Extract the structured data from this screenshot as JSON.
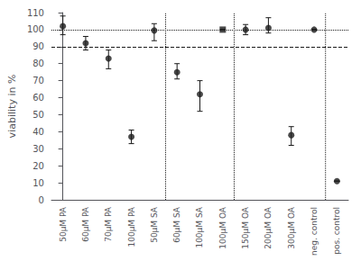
{
  "chart_data": {
    "type": "scatter",
    "categories": [
      "50μM PA",
      "60μM PA",
      "70μM PA",
      "100μM PA",
      "50μM SA",
      "60μM SA",
      "100μM SA",
      "100μM OA",
      "150μM OA",
      "200μM OA",
      "300μM OA",
      "neg. control",
      "pos. control"
    ],
    "values": [
      102,
      92,
      83,
      37,
      99.5,
      75,
      62,
      100,
      100,
      101,
      38,
      100,
      11
    ],
    "errors_upper": [
      6,
      4,
      5,
      4,
      4,
      5,
      8,
      0.1,
      3,
      6,
      5,
      0.1,
      0.1
    ],
    "errors_lower": [
      5,
      4,
      6,
      4,
      6,
      4,
      10,
      0.1,
      3,
      3,
      6,
      0.1,
      0.1
    ],
    "marker": [
      "circle",
      "circle",
      "circle",
      "circle",
      "circle",
      "circle",
      "circle",
      "square",
      "circle",
      "circle",
      "circle",
      "circle",
      "circle"
    ],
    "color": "#1a1a1a",
    "ylabel": "viability in %",
    "ylim": [
      0,
      110
    ],
    "yticks": [
      0,
      10,
      20,
      30,
      40,
      50,
      60,
      70,
      80,
      90,
      100,
      110
    ],
    "grid": false,
    "hlines": [
      {
        "value": 100,
        "line_style": "dotted"
      },
      {
        "value": 90,
        "line_style": "dashed"
      }
    ],
    "vlines": [
      {
        "value": 4.5,
        "line_style": "dotted"
      },
      {
        "value": 7.5,
        "line_style": "dotted"
      },
      {
        "value": 11.5,
        "line_style": "dotted"
      }
    ]
  }
}
